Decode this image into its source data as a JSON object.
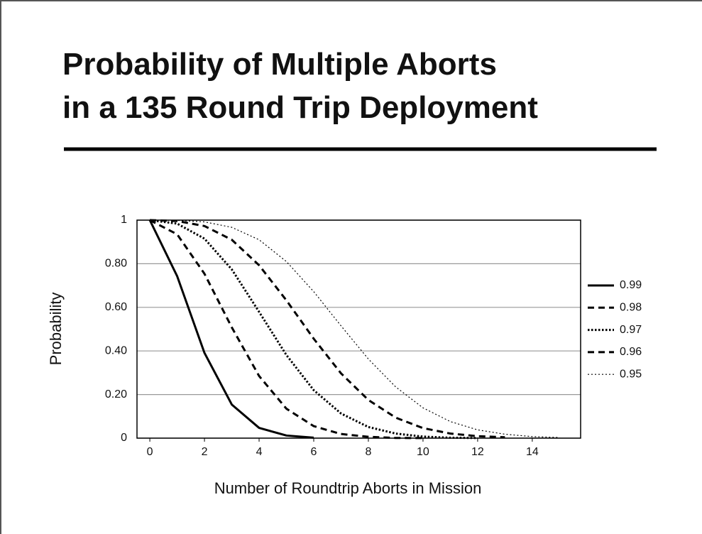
{
  "chart_data": {
    "type": "line",
    "title_lines": [
      "Probability of Multiple Aborts",
      "in a 135 Round Trip Deployment"
    ],
    "x_label": "Number of Roundtrip Aborts in Mission",
    "y_label": "Probability",
    "x": [
      0,
      1,
      2,
      3,
      4,
      5,
      6,
      7,
      8,
      9,
      10,
      11,
      12,
      13,
      14,
      15
    ],
    "series": [
      {
        "name": "0.99",
        "color": "#000000",
        "line_style": "solid",
        "values": [
          1,
          0.743,
          0.391,
          0.154,
          0.047,
          0.012,
          0.002,
          null,
          null,
          null,
          null,
          null,
          null,
          null,
          null,
          null
        ]
      },
      {
        "name": "0.98",
        "color": "#000000",
        "line_style": "dashed",
        "values": [
          1,
          0.935,
          0.754,
          0.508,
          0.285,
          0.135,
          0.055,
          0.019,
          0.006,
          0.001,
          0.0003,
          null,
          null,
          null,
          null,
          null
        ]
      },
      {
        "name": "0.97",
        "color": "#000000",
        "line_style": "dotted",
        "values": [
          1,
          0.984,
          0.915,
          0.774,
          0.579,
          0.381,
          0.22,
          0.113,
          0.051,
          0.021,
          0.007,
          0.002,
          0.0004,
          null,
          null,
          null
        ]
      },
      {
        "name": "0.96",
        "color": "#000000",
        "line_style": "dashed",
        "values": [
          1,
          0.996,
          0.973,
          0.91,
          0.793,
          0.632,
          0.456,
          0.297,
          0.175,
          0.094,
          0.046,
          0.021,
          0.009,
          0.004,
          null,
          null
        ]
      },
      {
        "name": "0.95",
        "color": "#000000",
        "line_style": "thin-dotted",
        "values": [
          1,
          0.999,
          0.992,
          0.967,
          0.91,
          0.81,
          0.672,
          0.515,
          0.363,
          0.235,
          0.139,
          0.076,
          0.038,
          0.018,
          0.007,
          0.003
        ]
      }
    ],
    "xlim": [
      -0.47,
      15.77
    ],
    "xticks": [
      0,
      2,
      4,
      6,
      8,
      10,
      12,
      14
    ],
    "ylim": [
      0,
      1
    ],
    "yticks": [
      0,
      {
        "value": 0.2,
        "label": "0.20"
      },
      {
        "value": 0.4,
        "label": "0.40"
      },
      {
        "value": 0.6,
        "label": "0.60"
      },
      {
        "value": 0.8,
        "label": "0.80"
      },
      1
    ],
    "grid": true,
    "legend": "right"
  }
}
